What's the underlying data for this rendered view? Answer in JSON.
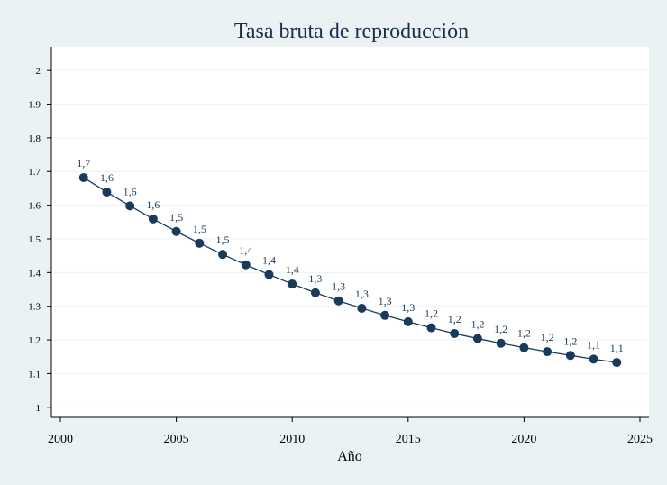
{
  "chart_data": {
    "type": "line",
    "title": "Tasa bruta de reproducción",
    "xlabel": "Año",
    "ylabel": "",
    "xlim": [
      1999,
      2025
    ],
    "ylim": [
      0.97,
      2.07
    ],
    "xticks": [
      2000,
      2005,
      2010,
      2015,
      2020,
      2025
    ],
    "yticks": [
      1,
      1.1,
      1.2,
      1.3,
      1.4,
      1.5,
      1.6,
      1.7,
      1.8,
      1.9,
      2
    ],
    "ytick_labels": [
      "1",
      "1.1",
      "1.2",
      "1.3",
      "1.4",
      "1.5",
      "1.6",
      "1.7",
      "1.8",
      "1.9",
      "2"
    ],
    "grid": true,
    "series": [
      {
        "x": [
          2001,
          2002,
          2003,
          2004,
          2005,
          2006,
          2007,
          2008,
          2009,
          2010,
          2011,
          2012,
          2013,
          2014,
          2015,
          2016,
          2017,
          2018,
          2019,
          2020,
          2021,
          2022,
          2023,
          2024
        ],
        "values": [
          1.682,
          1.639,
          1.598,
          1.559,
          1.522,
          1.487,
          1.454,
          1.423,
          1.394,
          1.366,
          1.34,
          1.316,
          1.294,
          1.273,
          1.254,
          1.236,
          1.219,
          1.204,
          1.19,
          1.177,
          1.165,
          1.154,
          1.143,
          1.133
        ],
        "labels": [
          "1,7",
          "1,6",
          "1,6",
          "1,6",
          "1,5",
          "1,5",
          "1,5",
          "1,4",
          "1,4",
          "1,4",
          "1,3",
          "1,3",
          "1,3",
          "1,3",
          "1,3",
          "1,2",
          "1,2",
          "1,2",
          "1,2",
          "1,2",
          "1,2",
          "1,2",
          "1,1",
          "1,1"
        ]
      }
    ],
    "colors": {
      "line": "#1a3a5c",
      "marker": "#1a3a5c",
      "plot_bg": "#ffffff",
      "page_bg": "#eaf2f3"
    }
  }
}
